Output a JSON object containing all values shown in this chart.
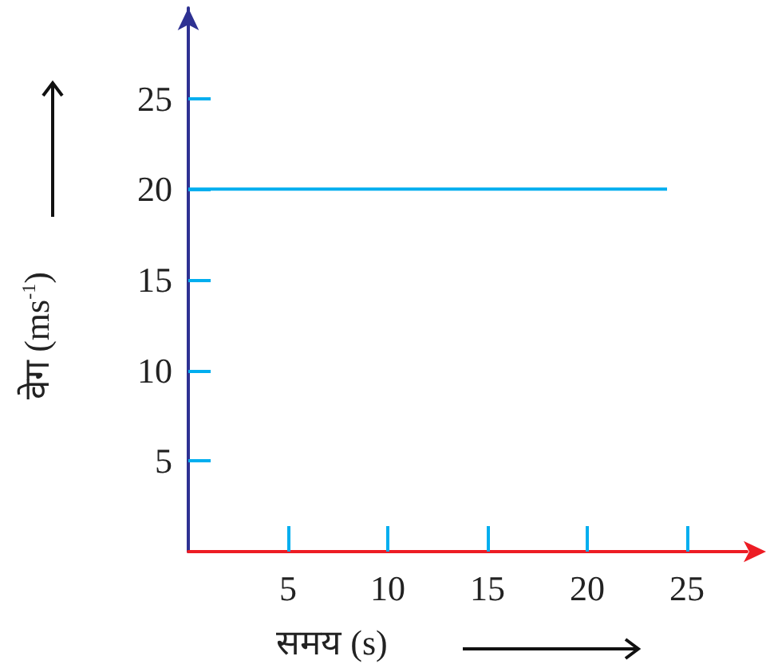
{
  "chart_data": {
    "type": "line",
    "xlabel": "समय (s)",
    "ylabel": "वेग (ms$^{-1}$)",
    "x": [
      0,
      24
    ],
    "series": [
      {
        "color": "#00aeef",
        "values": [
          20,
          20
        ]
      }
    ],
    "xlim": [
      0,
      28
    ],
    "xticks": [
      5,
      10,
      15,
      20,
      25
    ],
    "ylim": [
      0,
      30
    ],
    "yticks": [
      5,
      10,
      15,
      20,
      25
    ],
    "grid": false,
    "marker": "none",
    "line_style": "solid"
  }
}
